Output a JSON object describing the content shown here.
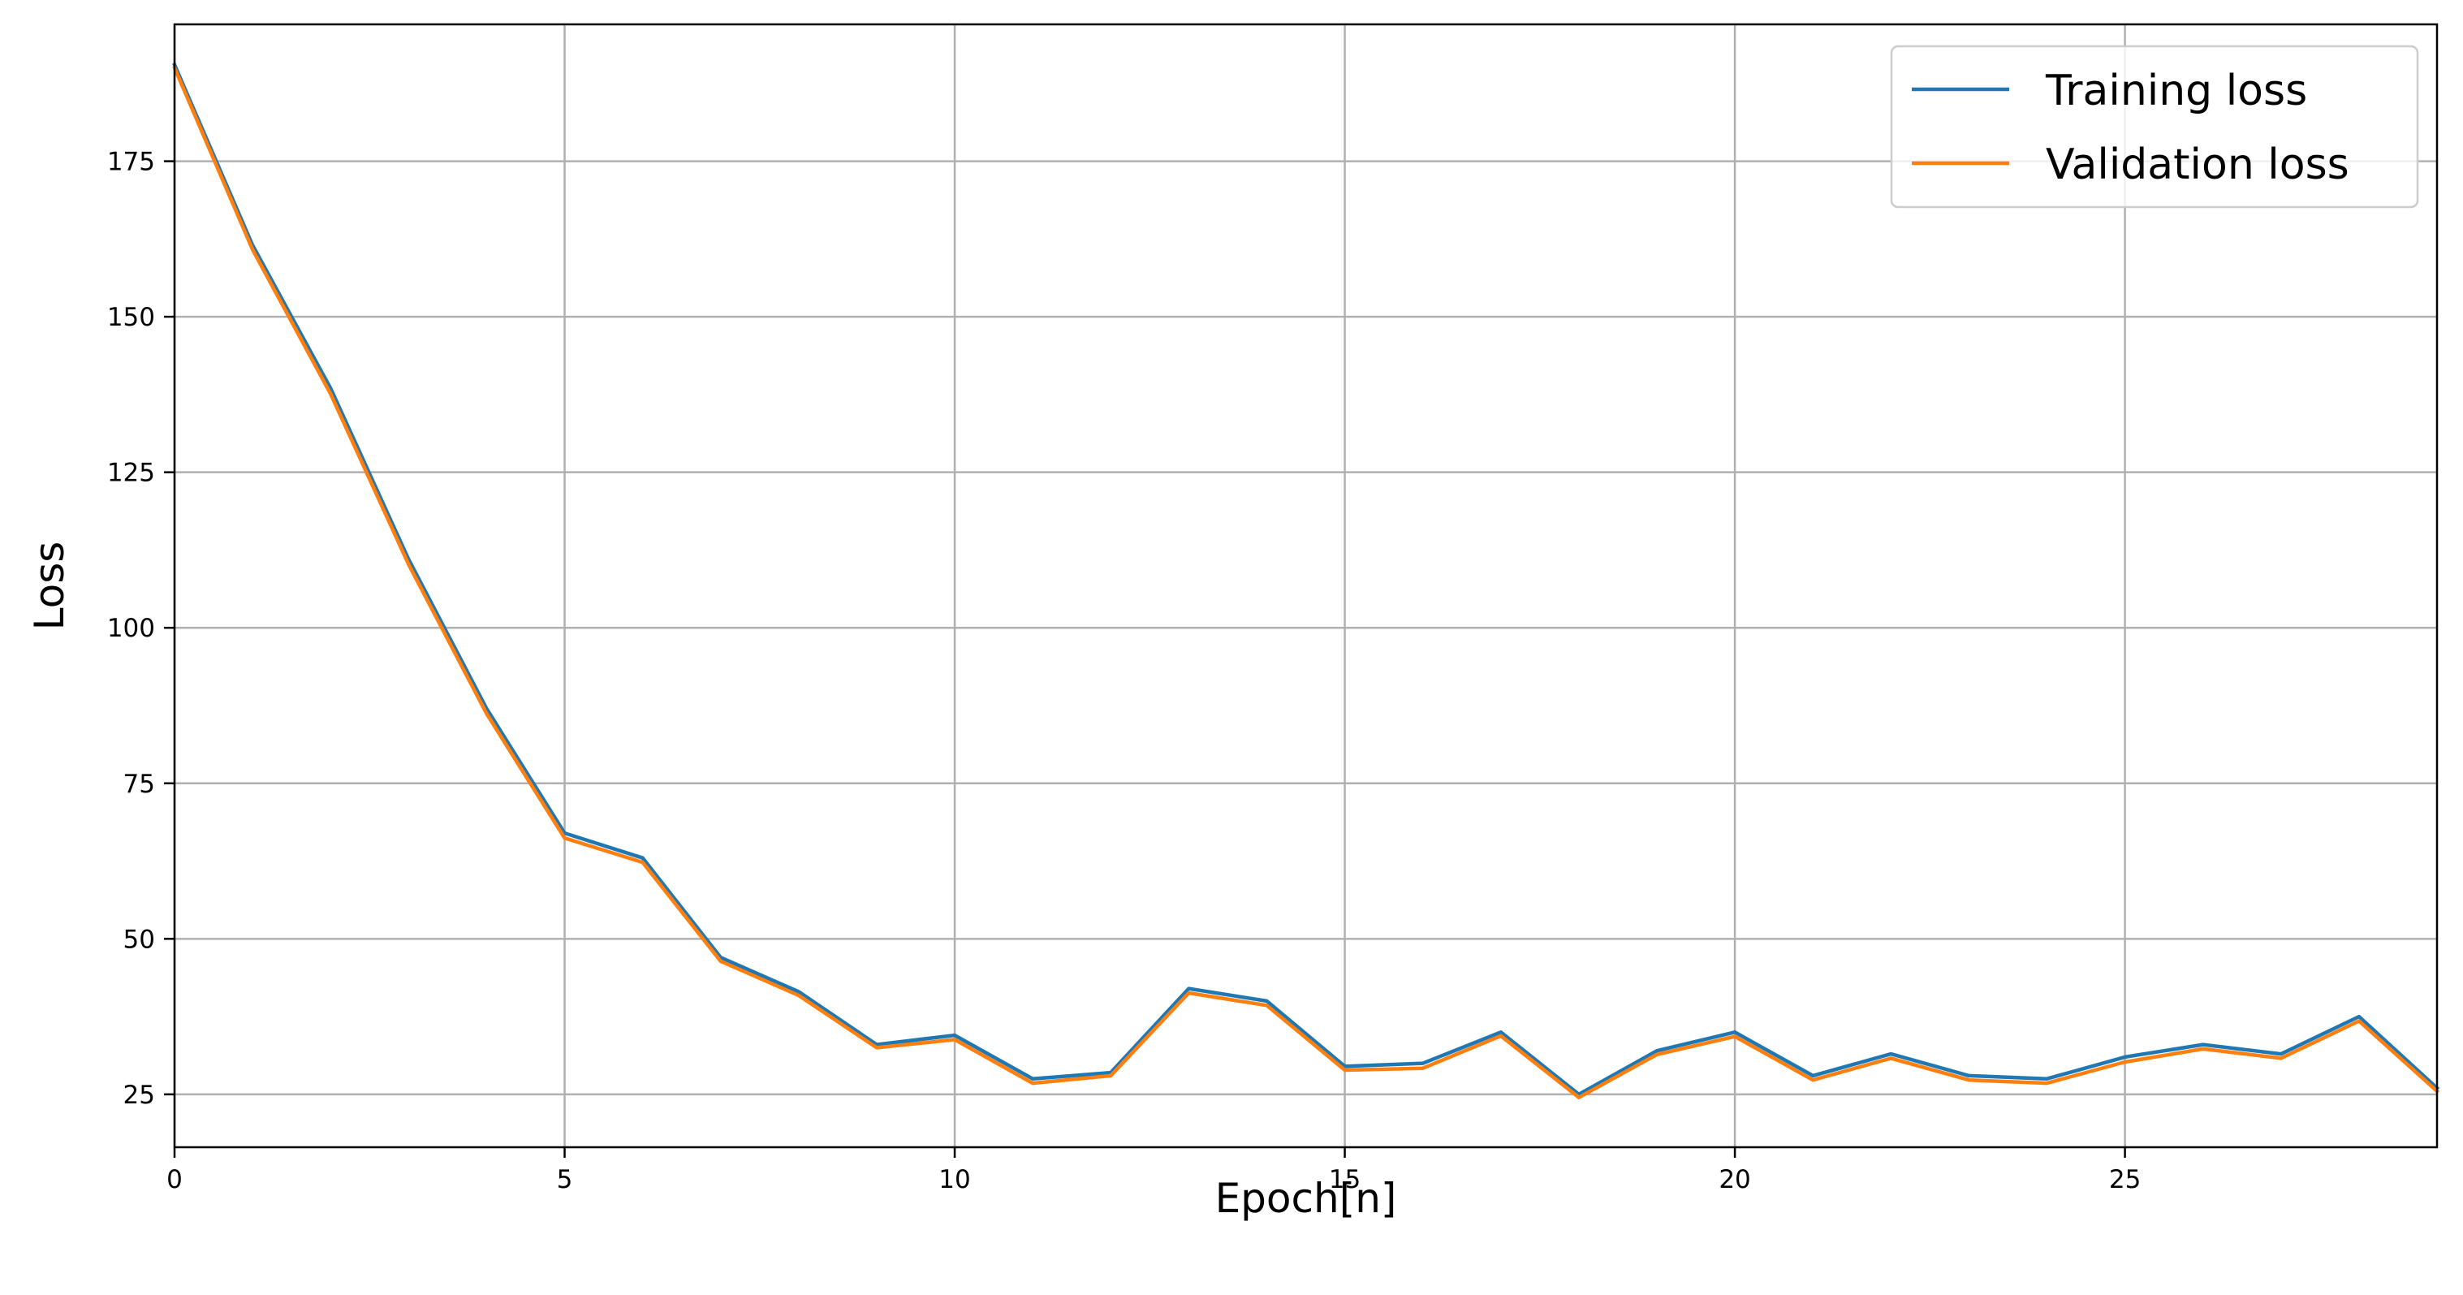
{
  "chart_data": {
    "type": "line",
    "xlabel": "Epoch[n]",
    "ylabel": "Loss",
    "xlim": [
      0,
      29
    ],
    "ylim": [
      16.5,
      197
    ],
    "xticks": [
      0,
      5,
      10,
      15,
      20,
      25
    ],
    "xtick_labels": [
      "0",
      "5",
      "10",
      "15",
      "20",
      "25"
    ],
    "yticks": [
      25,
      50,
      75,
      100,
      125,
      150,
      175
    ],
    "ytick_labels": [
      "25",
      "50",
      "75",
      "100",
      "125",
      "150",
      "175"
    ],
    "grid": true,
    "legend_position": "top-right",
    "x": [
      0,
      1,
      2,
      3,
      4,
      5,
      6,
      7,
      8,
      9,
      10,
      11,
      12,
      13,
      14,
      15,
      16,
      17,
      18,
      19,
      20,
      21,
      22,
      23,
      24,
      25,
      26,
      27,
      28,
      29
    ],
    "series": [
      {
        "name": "Training loss",
        "color": "#1f77b4",
        "values": [
          190.5,
          161.5,
          138.5,
          111.0,
          87.0,
          67.0,
          63.0,
          47.0,
          41.5,
          33.0,
          34.5,
          27.5,
          28.5,
          42.0,
          40.0,
          29.5,
          30.0,
          35.0,
          25.0,
          32.0,
          35.0,
          28.0,
          31.5,
          28.0,
          27.5,
          31.0,
          33.0,
          31.5,
          37.5,
          26.0
        ]
      },
      {
        "name": "Validation loss",
        "color": "#ff7f0e",
        "values": [
          190.0,
          160.8,
          137.6,
          110.2,
          86.2,
          66.2,
          62.3,
          46.4,
          40.9,
          32.5,
          33.8,
          26.8,
          28.0,
          41.3,
          39.3,
          28.9,
          29.2,
          34.4,
          24.5,
          31.4,
          34.3,
          27.3,
          30.8,
          27.3,
          26.8,
          30.2,
          32.3,
          30.8,
          36.8,
          25.5
        ]
      }
    ]
  }
}
